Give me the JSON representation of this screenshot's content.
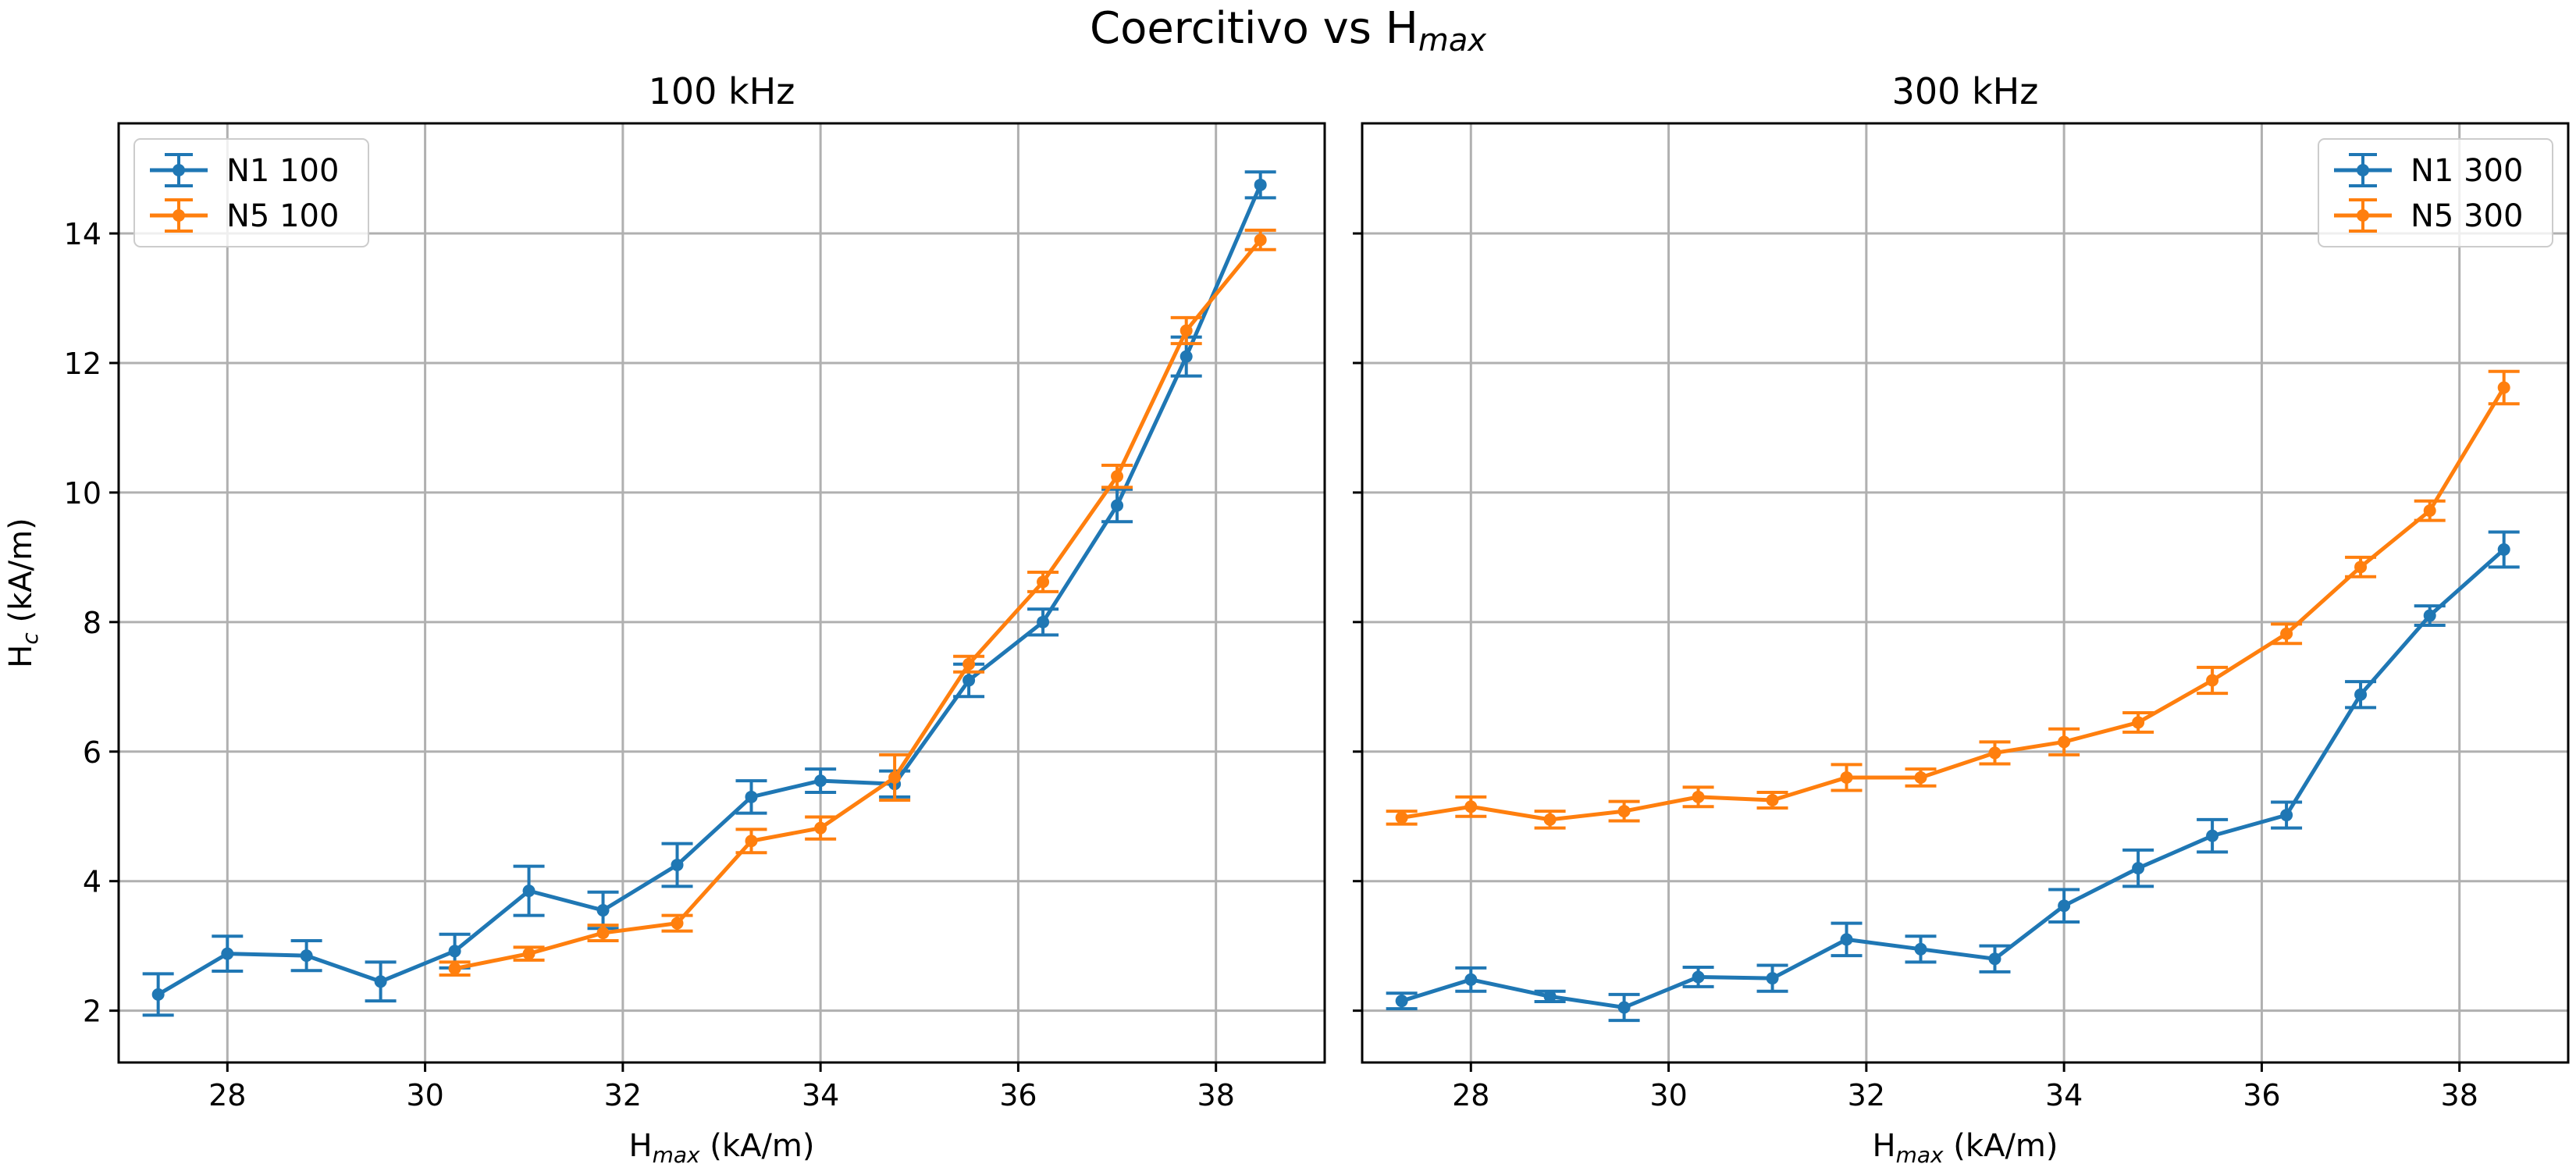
{
  "figure": {
    "title_main": "Coercitivo vs H",
    "title_sub": "max"
  },
  "chart_data": [
    {
      "type": "line",
      "title": "100 kHz",
      "xlabel": "H_max (kA/m)",
      "xlabel_main": "H",
      "xlabel_sub": "max",
      "xlabel_suffix": " (kA/m)",
      "ylabel": "H_c (kA/m)",
      "ylabel_main": "H",
      "ylabel_sub": "c",
      "ylabel_suffix": " (kA/m)",
      "xlim": [
        26.9,
        39.1
      ],
      "ylim": [
        1.2,
        15.7
      ],
      "xticks": [
        28,
        30,
        32,
        34,
        36,
        38
      ],
      "yticks": [
        2,
        4,
        6,
        8,
        10,
        12,
        14
      ],
      "grid": true,
      "legend_position": "top-left",
      "series": [
        {
          "name": "N1 100",
          "color": "#1f77b4",
          "x": [
            27.3,
            28.0,
            28.8,
            29.55,
            30.3,
            31.05,
            31.8,
            32.55,
            33.3,
            34.0,
            34.75,
            35.5,
            36.25,
            37.0,
            37.7,
            38.45
          ],
          "y": [
            2.25,
            2.88,
            2.85,
            2.45,
            2.92,
            3.85,
            3.55,
            4.25,
            5.3,
            5.55,
            5.5,
            7.1,
            8.0,
            9.8,
            12.1,
            14.75
          ],
          "err": [
            0.32,
            0.27,
            0.23,
            0.3,
            0.26,
            0.38,
            0.28,
            0.33,
            0.25,
            0.18,
            0.2,
            0.25,
            0.2,
            0.25,
            0.3,
            0.2
          ]
        },
        {
          "name": "N5 100",
          "color": "#ff7f0e",
          "x": [
            30.3,
            31.05,
            31.8,
            32.55,
            33.3,
            34.0,
            34.75,
            35.5,
            36.25,
            37.0,
            37.7,
            38.45
          ],
          "y": [
            2.65,
            2.88,
            3.2,
            3.35,
            4.62,
            4.82,
            5.6,
            7.35,
            8.62,
            10.25,
            12.5,
            13.9
          ],
          "err": [
            0.1,
            0.1,
            0.12,
            0.12,
            0.18,
            0.17,
            0.35,
            0.12,
            0.15,
            0.17,
            0.2,
            0.15
          ]
        }
      ]
    },
    {
      "type": "line",
      "title": "300 kHz",
      "xlabel": "H_max (kA/m)",
      "xlabel_main": "H",
      "xlabel_sub": "max",
      "xlabel_suffix": " (kA/m)",
      "xlim": [
        26.9,
        39.1
      ],
      "ylim": [
        1.2,
        15.7
      ],
      "xticks": [
        28,
        30,
        32,
        34,
        36,
        38
      ],
      "yticks": [
        2,
        4,
        6,
        8,
        10,
        12,
        14
      ],
      "grid": true,
      "legend_position": "top-right",
      "series": [
        {
          "name": "N1 300",
          "color": "#1f77b4",
          "x": [
            27.3,
            28.0,
            28.8,
            29.55,
            30.3,
            31.05,
            31.8,
            32.55,
            33.3,
            34.0,
            34.75,
            35.5,
            36.25,
            37.0,
            37.7,
            38.45
          ],
          "y": [
            2.15,
            2.48,
            2.22,
            2.05,
            2.52,
            2.5,
            3.1,
            2.95,
            2.8,
            3.62,
            4.2,
            4.7,
            5.02,
            6.88,
            8.1,
            9.12
          ],
          "err": [
            0.12,
            0.18,
            0.08,
            0.2,
            0.15,
            0.2,
            0.25,
            0.2,
            0.2,
            0.25,
            0.28,
            0.25,
            0.2,
            0.2,
            0.15,
            0.27
          ]
        },
        {
          "name": "N5 300",
          "color": "#ff7f0e",
          "x": [
            27.3,
            28.0,
            28.8,
            29.55,
            30.3,
            31.05,
            31.8,
            32.55,
            33.3,
            34.0,
            34.75,
            35.5,
            36.25,
            37.0,
            37.7,
            38.45
          ],
          "y": [
            4.98,
            5.15,
            4.95,
            5.08,
            5.3,
            5.25,
            5.6,
            5.6,
            5.98,
            6.15,
            6.45,
            7.1,
            7.82,
            8.85,
            9.72,
            11.62
          ],
          "err": [
            0.1,
            0.15,
            0.13,
            0.15,
            0.15,
            0.12,
            0.2,
            0.13,
            0.17,
            0.2,
            0.15,
            0.2,
            0.15,
            0.15,
            0.15,
            0.25
          ]
        }
      ]
    }
  ]
}
